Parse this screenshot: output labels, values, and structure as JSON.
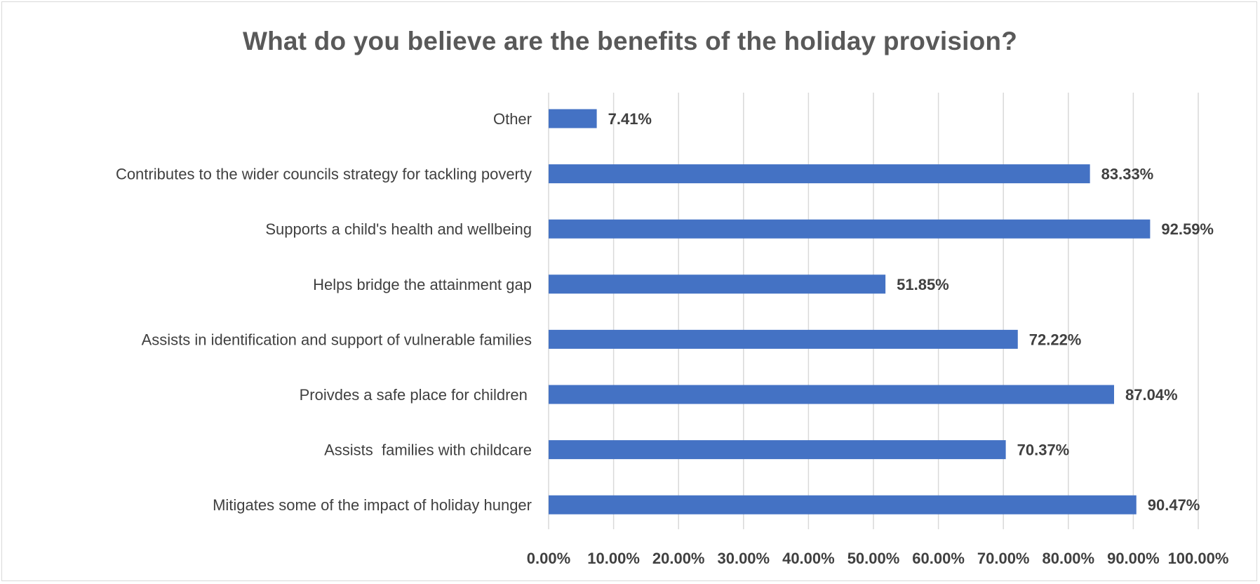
{
  "chart_data": {
    "type": "bar",
    "orientation": "horizontal",
    "title": "What do you believe are the benefits of the holiday provision?",
    "categories": [
      "Other",
      "Contributes to the wider councils strategy for tackling poverty",
      "Supports a child's health and wellbeing",
      "Helps bridge the attainment gap",
      "Assists in identification and support of vulnerable families",
      "Proivdes a safe place for children ",
      "Assists  families with childcare",
      "Mitigates some of the impact of holiday hunger"
    ],
    "values": [
      7.41,
      83.33,
      92.59,
      51.85,
      72.22,
      87.04,
      70.37,
      90.47
    ],
    "value_labels": [
      "7.41%",
      "83.33%",
      "92.59%",
      "51.85%",
      "72.22%",
      "87.04%",
      "70.37%",
      "90.47%"
    ],
    "x_ticks": [
      0,
      10,
      20,
      30,
      40,
      50,
      60,
      70,
      80,
      90,
      100
    ],
    "x_tick_labels": [
      "0.00%",
      "10.00%",
      "20.00%",
      "30.00%",
      "40.00%",
      "50.00%",
      "60.00%",
      "70.00%",
      "80.00%",
      "90.00%",
      "100.00%"
    ],
    "xlim": [
      0,
      100
    ],
    "xlabel": "",
    "ylabel": "",
    "grid": true,
    "legend": false,
    "bar_color": "#4472c4",
    "gridline_color": "#d9d9d9"
  }
}
